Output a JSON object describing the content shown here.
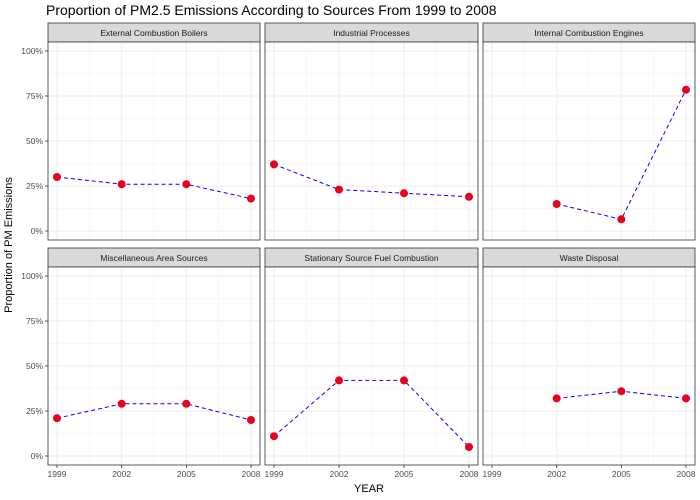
{
  "chart_data": {
    "type": "line",
    "title": "Proportion of PM2.5 Emissions According to Sources From 1999 to 2008",
    "xlabel": "YEAR",
    "ylabel": "Proportion of PM Emissions",
    "x_ticks": [
      1999,
      2002,
      2005,
      2008
    ],
    "y_ticks": [
      0,
      0.25,
      0.5,
      0.75,
      1.0
    ],
    "y_tick_labels": [
      "0%",
      "25%",
      "50%",
      "75%",
      "100%"
    ],
    "ylim": [
      0,
      1.0
    ],
    "xlim": [
      1999,
      2008
    ],
    "grid": true,
    "line_color": "#0000ff",
    "point_color": "#e8001c",
    "strip_color": "#d9d9d9",
    "facets": [
      {
        "name": "External Combustion Boilers",
        "x": [
          1999,
          2002,
          2005,
          2008
        ],
        "y": [
          0.3,
          0.26,
          0.26,
          0.18
        ]
      },
      {
        "name": "Industrial Processes",
        "x": [
          1999,
          2002,
          2005,
          2008
        ],
        "y": [
          0.37,
          0.23,
          0.21,
          0.19
        ]
      },
      {
        "name": "Internal Combustion Engines",
        "x": [
          2002,
          2005,
          2008
        ],
        "y": [
          0.15,
          0.065,
          0.785
        ]
      },
      {
        "name": "Miscellaneous Area Sources",
        "x": [
          1999,
          2002,
          2005,
          2008
        ],
        "y": [
          0.21,
          0.29,
          0.29,
          0.2
        ]
      },
      {
        "name": "Stationary Source Fuel Combustion",
        "x": [
          1999,
          2002,
          2005,
          2008
        ],
        "y": [
          0.11,
          0.42,
          0.42,
          0.05
        ]
      },
      {
        "name": "Waste Disposal",
        "x": [
          2002,
          2005,
          2008
        ],
        "y": [
          0.32,
          0.36,
          0.32
        ]
      }
    ]
  }
}
